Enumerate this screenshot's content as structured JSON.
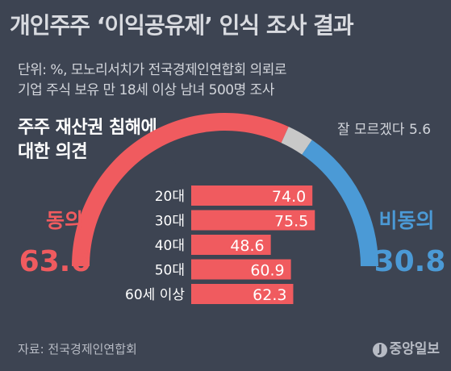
{
  "title": "개인주주 ‘이익공유제’ 인식 조사 결과",
  "subtitle_line1": "단위: %, 모노리서치가 전국경제인연합회 의뢰로",
  "subtitle_line2": "기업 주식 보유 만 18세 이상 남녀 500명 조사",
  "question_line1": "주주 재산권 침해에",
  "question_line2": "대한 의견",
  "footer": "자료: 전국경제인연합회",
  "logo_text": "중앙일보",
  "logo_badge": "J",
  "colors": {
    "agree": "#f05b5f",
    "unsure": "#c8c8c8",
    "disagree": "#4b9ad6",
    "background": "#3d4452"
  },
  "chart_data": [
    {
      "type": "pie",
      "slices": [
        {
          "name": "동의",
          "value": 63.6,
          "label": "63.6"
        },
        {
          "name": "잘 모르겠다",
          "value": 5.6,
          "label": "잘 모르겠다 5.6"
        },
        {
          "name": "비동의",
          "value": 30.8,
          "label": "30.8"
        }
      ]
    },
    {
      "type": "bar",
      "categories": [
        "20대",
        "30대",
        "40대",
        "50대",
        "60세 이상"
      ],
      "values": [
        74.0,
        75.5,
        48.6,
        60.9,
        62.3
      ],
      "value_labels": [
        "74.0",
        "75.5",
        "48.6",
        "60.9",
        "62.3"
      ],
      "xlim": [
        0,
        100
      ]
    }
  ]
}
